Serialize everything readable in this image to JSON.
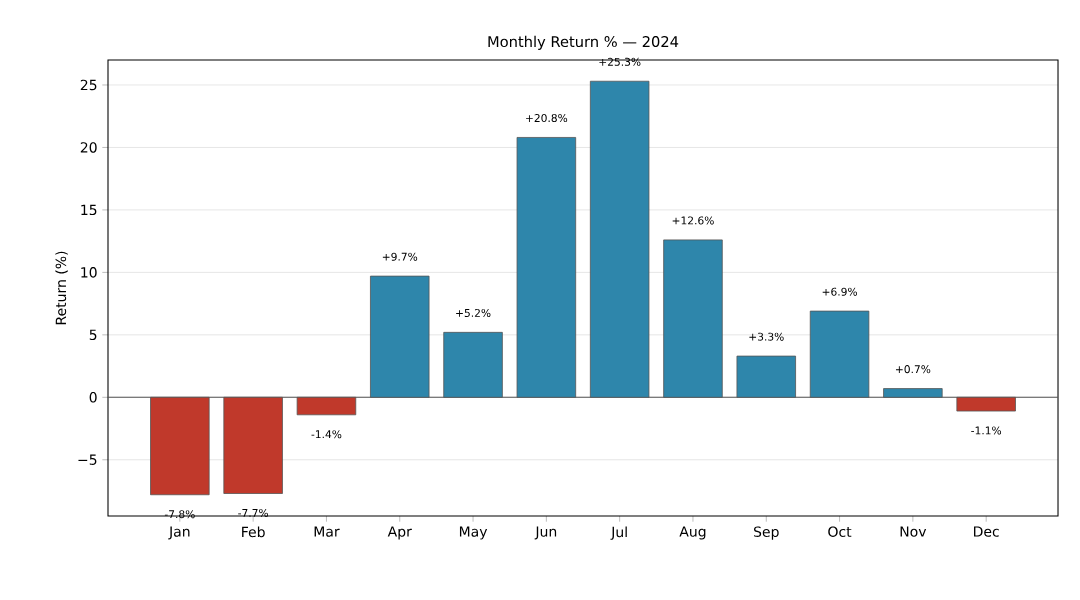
{
  "chart_data": {
    "type": "bar",
    "title": "Monthly Return % — 2024",
    "ylabel": "Return (%)",
    "categories": [
      "Jan",
      "Feb",
      "Mar",
      "Apr",
      "May",
      "Jun",
      "Jul",
      "Aug",
      "Sep",
      "Oct",
      "Nov",
      "Dec"
    ],
    "values": [
      -7.8,
      -7.7,
      -1.4,
      9.7,
      5.2,
      20.8,
      25.3,
      12.6,
      3.3,
      6.9,
      0.7,
      -1.1
    ],
    "colors": [
      "#c0392b",
      "#c0392b",
      "#c0392b",
      "#2e86ab",
      "#2e86ab",
      "#2e86ab",
      "#2e86ab",
      "#2e86ab",
      "#2e86ab",
      "#2e86ab",
      "#2e86ab",
      "#c0392b"
    ],
    "value_labels": [
      "-7.8%",
      "-7.7%",
      "-1.4%",
      "+9.7%",
      "+5.2%",
      "+20.8%",
      "+25.3%",
      "+12.6%",
      "+3.3%",
      "+6.9%",
      "+0.7%",
      "-1.1%"
    ],
    "ylim": [
      -9.5,
      27
    ],
    "yticks": [
      {
        "value": -5,
        "label": "−5"
      },
      0,
      5,
      10,
      15,
      20,
      25
    ],
    "grid": "y",
    "ref_lines": [
      {
        "axis": "y",
        "value": 0,
        "color": "#555555"
      }
    ]
  }
}
